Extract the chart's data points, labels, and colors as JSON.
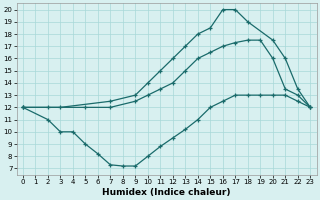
{
  "xlabel": "Humidex (Indice chaleur)",
  "bg_color": "#d8f0f0",
  "grid_color": "#a8d8d8",
  "line_color": "#1a6b6b",
  "xlim": [
    -0.5,
    23.5
  ],
  "ylim": [
    6.5,
    20.5
  ],
  "xticks": [
    0,
    1,
    2,
    3,
    4,
    5,
    6,
    7,
    8,
    9,
    10,
    11,
    12,
    13,
    14,
    15,
    16,
    17,
    18,
    19,
    20,
    21,
    22,
    23
  ],
  "yticks": [
    7,
    8,
    9,
    10,
    11,
    12,
    13,
    14,
    15,
    16,
    17,
    18,
    19,
    20
  ],
  "line1_x": [
    0,
    2,
    3,
    4,
    5,
    6,
    7,
    8,
    9,
    10,
    11,
    12,
    13,
    14,
    15,
    16,
    17,
    18,
    19,
    20,
    21,
    22,
    23
  ],
  "line1_y": [
    12,
    11,
    10,
    10,
    9,
    8.2,
    7.3,
    7.2,
    7.2,
    8,
    8.8,
    9.5,
    10.2,
    11,
    12,
    12.5,
    13,
    13,
    13,
    13,
    13,
    12.5,
    12
  ],
  "line2_x": [
    0,
    2,
    5,
    7,
    9,
    10,
    11,
    12,
    13,
    14,
    15,
    16,
    17,
    18,
    19,
    20,
    21,
    22,
    23
  ],
  "line2_y": [
    12,
    12,
    12,
    12,
    12.5,
    13,
    13.5,
    14,
    15,
    16,
    16.5,
    17,
    17.3,
    17.5,
    17.5,
    16,
    13.5,
    13,
    12
  ],
  "line3_x": [
    0,
    3,
    7,
    9,
    10,
    11,
    12,
    13,
    14,
    15,
    16,
    17,
    18,
    20,
    21,
    22,
    23
  ],
  "line3_y": [
    12,
    12,
    12.5,
    13,
    14,
    15,
    16,
    17,
    18,
    18.5,
    20,
    20,
    19,
    17.5,
    16,
    13.5,
    12
  ]
}
